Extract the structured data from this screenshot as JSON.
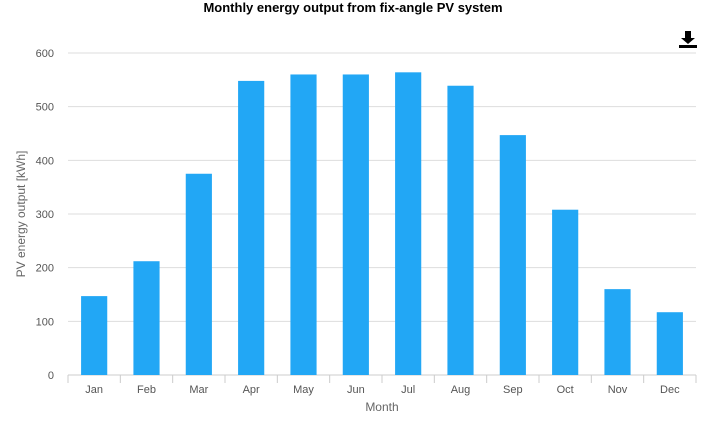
{
  "chart_data": {
    "type": "bar",
    "title": "Monthly energy output from fix-angle PV system",
    "xlabel": "Month",
    "ylabel": "PV energy output [kWh]",
    "categories": [
      "Jan",
      "Feb",
      "Mar",
      "Apr",
      "May",
      "Jun",
      "Jul",
      "Aug",
      "Sep",
      "Oct",
      "Nov",
      "Dec"
    ],
    "values": [
      147,
      212,
      375,
      548,
      560,
      560,
      564,
      539,
      447,
      308,
      160,
      117
    ],
    "ylim": [
      0,
      600
    ],
    "yticks": [
      "0",
      "100",
      "200",
      "300",
      "400",
      "500",
      "600"
    ],
    "grid": true,
    "legend": "none",
    "bar_color": "#22a7f5"
  },
  "toolbar": {
    "download_icon": "download-icon"
  }
}
